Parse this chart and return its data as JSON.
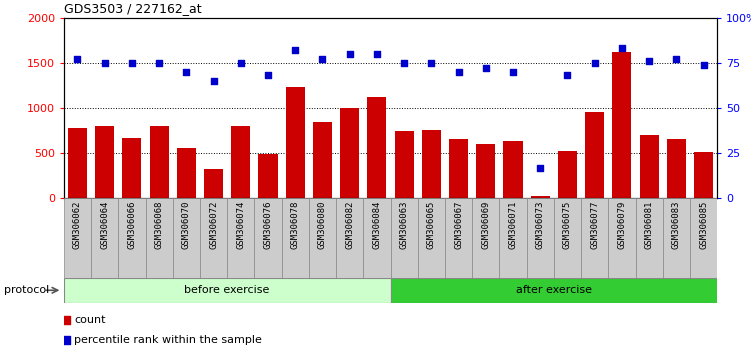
{
  "title": "GDS3503 / 227162_at",
  "categories": [
    "GSM306062",
    "GSM306064",
    "GSM306066",
    "GSM306068",
    "GSM306070",
    "GSM306072",
    "GSM306074",
    "GSM306076",
    "GSM306078",
    "GSM306080",
    "GSM306082",
    "GSM306084",
    "GSM306063",
    "GSM306065",
    "GSM306067",
    "GSM306069",
    "GSM306071",
    "GSM306073",
    "GSM306075",
    "GSM306077",
    "GSM306079",
    "GSM306081",
    "GSM306083",
    "GSM306085"
  ],
  "counts": [
    780,
    800,
    665,
    800,
    555,
    320,
    800,
    490,
    1230,
    840,
    1000,
    1120,
    750,
    755,
    660,
    600,
    635,
    20,
    520,
    960,
    1620,
    700,
    660,
    510
  ],
  "percentile_ranks": [
    77,
    75,
    75,
    75,
    70,
    65,
    75,
    68,
    82,
    77,
    80,
    80,
    75,
    75,
    70,
    72,
    70,
    17,
    68,
    75,
    83,
    76,
    77,
    74
  ],
  "before_count": 12,
  "after_count": 12,
  "bar_color": "#cc0000",
  "dot_color": "#0000cc",
  "before_bg": "#ccffcc",
  "after_bg": "#33cc33",
  "protocol_label": "protocol",
  "before_label": "before exercise",
  "after_label": "after exercise",
  "legend_count": "count",
  "legend_pct": "percentile rank within the sample",
  "ylim_left": [
    0,
    2000
  ],
  "ylim_right": [
    0,
    100
  ],
  "yticks_left": [
    0,
    500,
    1000,
    1500,
    2000
  ],
  "ytick_labels_left": [
    "0",
    "500",
    "1000",
    "1500",
    "2000"
  ],
  "yticks_right": [
    0,
    25,
    50,
    75,
    100
  ],
  "ytick_labels_right": [
    "0",
    "25",
    "50",
    "75",
    "100%"
  ],
  "grid_values": [
    500,
    1000,
    1500
  ]
}
